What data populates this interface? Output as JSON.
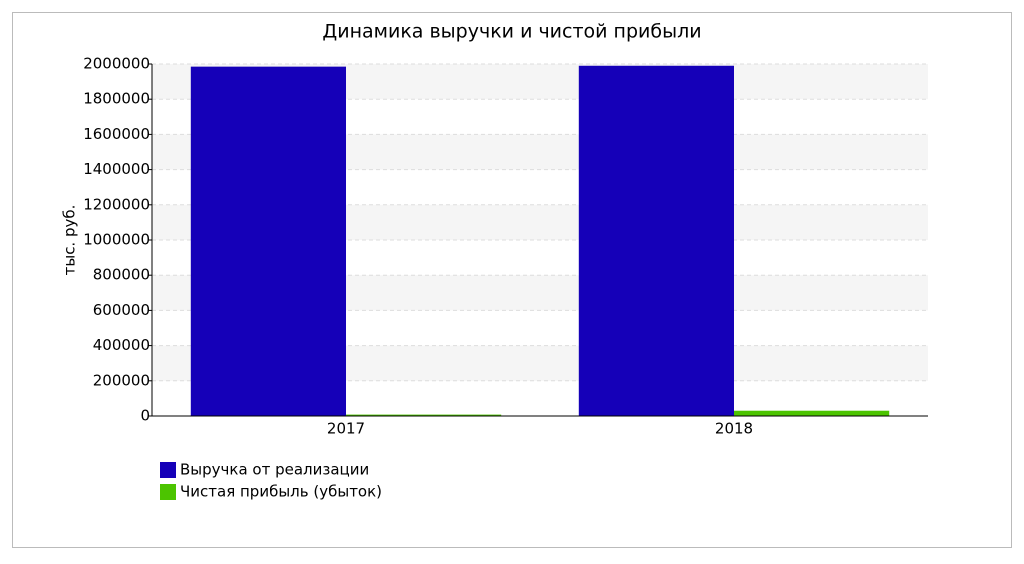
{
  "chart_data": {
    "type": "bar",
    "title": "Динамика выручки и чистой прибыли",
    "y_label": "тыс. руб.",
    "categories": [
      "2017",
      "2018"
    ],
    "series": [
      {
        "name": "Выручка от реализации",
        "color": "#1500b8",
        "values": [
          1985000,
          1990000
        ]
      },
      {
        "name": "Чистая прибыль (убыток)",
        "color": "#4cc400",
        "values": [
          8000,
          30000
        ]
      }
    ],
    "ylim": [
      0,
      2000000
    ],
    "yticks": [
      0,
      200000,
      400000,
      600000,
      800000,
      1000000,
      1200000,
      1400000,
      1600000,
      1800000,
      2000000
    ],
    "grid": true
  }
}
